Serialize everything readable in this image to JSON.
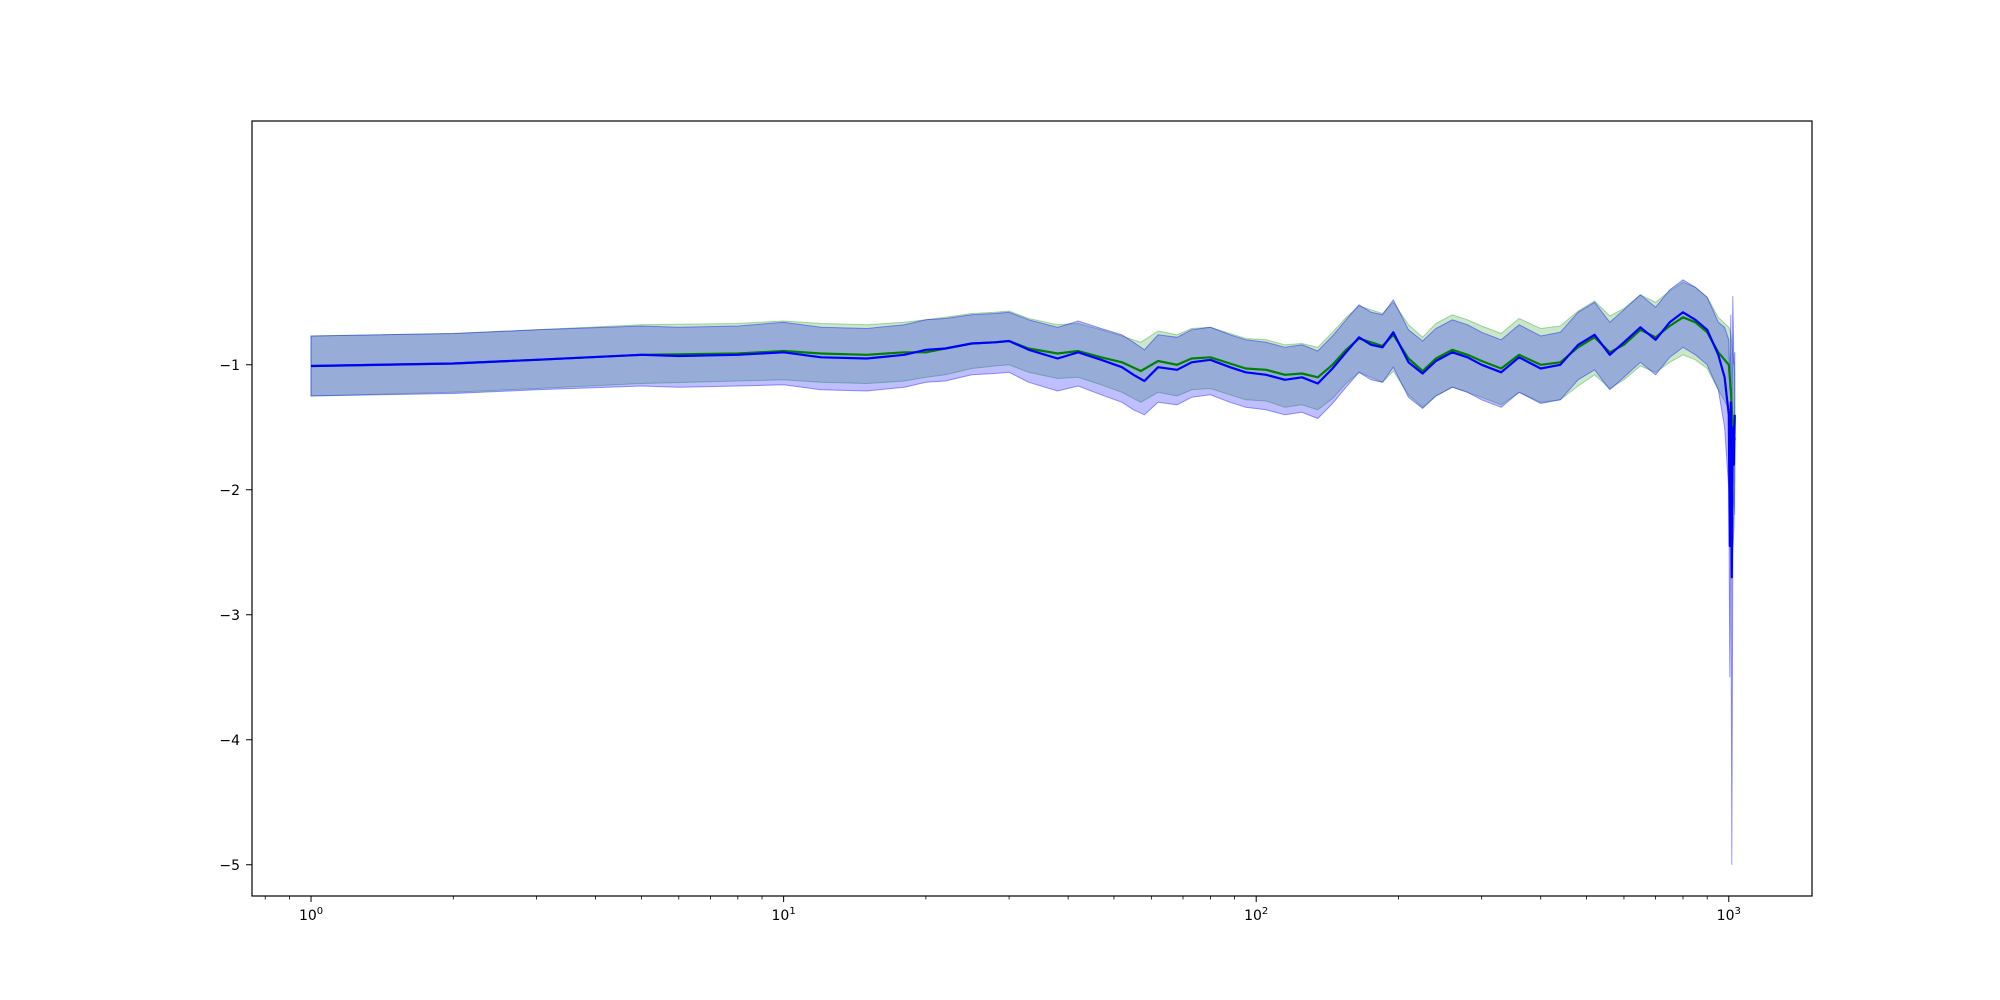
{
  "chart_data": {
    "type": "line",
    "title": "",
    "xlabel": "",
    "ylabel": "",
    "xscale": "log",
    "xlim": [
      0.75,
      1500
    ],
    "ylim": [
      -5.25,
      0.95
    ],
    "grid": false,
    "legend": "none",
    "x_major_ticks": [
      {
        "value": 1,
        "base": "10",
        "exp": "0"
      },
      {
        "value": 10,
        "base": "10",
        "exp": "1"
      },
      {
        "value": 100,
        "base": "10",
        "exp": "2"
      },
      {
        "value": 1000,
        "base": "10",
        "exp": "3"
      }
    ],
    "x_minor_ticks": [
      0.8,
      0.9,
      2,
      3,
      4,
      5,
      6,
      7,
      8,
      9,
      20,
      30,
      40,
      50,
      60,
      70,
      80,
      90,
      200,
      300,
      400,
      500,
      600,
      700,
      800,
      900
    ],
    "y_ticks": [
      {
        "value": -5,
        "label": "−5"
      },
      {
        "value": -4,
        "label": "−4"
      },
      {
        "value": -3,
        "label": "−3"
      },
      {
        "value": -2,
        "label": "−2"
      },
      {
        "value": -1,
        "label": "−1"
      }
    ],
    "series": [
      {
        "color": "#008000",
        "band_color": "#2ca02c",
        "x": [
          1,
          2,
          3,
          5,
          8,
          10,
          12,
          15,
          18,
          20,
          22,
          25,
          28,
          30,
          33,
          38,
          42,
          47,
          52,
          57,
          62,
          68,
          73,
          80,
          88,
          95,
          105,
          115,
          125,
          135,
          145,
          155,
          165,
          175,
          185,
          195,
          210,
          225,
          240,
          260,
          280,
          300,
          330,
          360,
          400,
          440,
          480,
          520,
          560,
          600,
          650,
          700,
          750,
          800,
          850,
          900,
          950,
          1000,
          1010,
          1020,
          1030
        ],
        "y": [
          -1.01,
          -0.99,
          -0.96,
          -0.92,
          -0.91,
          -0.89,
          -0.91,
          -0.92,
          -0.9,
          -0.9,
          -0.87,
          -0.83,
          -0.82,
          -0.81,
          -0.87,
          -0.91,
          -0.89,
          -0.94,
          -0.98,
          -1.05,
          -0.97,
          -1.0,
          -0.95,
          -0.94,
          -0.99,
          -1.03,
          -1.04,
          -1.08,
          -1.07,
          -1.1,
          -1.0,
          -0.88,
          -0.79,
          -0.82,
          -0.85,
          -0.76,
          -0.95,
          -1.05,
          -0.95,
          -0.88,
          -0.92,
          -0.97,
          -1.03,
          -0.92,
          -1.0,
          -0.98,
          -0.86,
          -0.78,
          -0.9,
          -0.84,
          -0.72,
          -0.78,
          -0.69,
          -0.62,
          -0.66,
          -0.74,
          -0.9,
          -1.0,
          -1.2,
          -1.5,
          -1.6
        ],
        "lower": [
          -1.25,
          -1.22,
          -1.19,
          -1.15,
          -1.13,
          -1.12,
          -1.14,
          -1.15,
          -1.13,
          -1.1,
          -1.08,
          -1.03,
          -1.01,
          -1.0,
          -1.06,
          -1.11,
          -1.1,
          -1.16,
          -1.22,
          -1.3,
          -1.22,
          -1.25,
          -1.2,
          -1.19,
          -1.24,
          -1.28,
          -1.29,
          -1.34,
          -1.32,
          -1.36,
          -1.27,
          -1.15,
          -1.06,
          -1.1,
          -1.14,
          -1.05,
          -1.24,
          -1.34,
          -1.25,
          -1.18,
          -1.22,
          -1.26,
          -1.32,
          -1.22,
          -1.3,
          -1.28,
          -1.17,
          -1.08,
          -1.19,
          -1.12,
          -1.01,
          -1.06,
          -0.98,
          -0.92,
          -0.96,
          -1.03,
          -1.2,
          -1.35,
          -1.75,
          -2.0,
          -2.2
        ],
        "upper": [
          -0.77,
          -0.75,
          -0.72,
          -0.68,
          -0.67,
          -0.65,
          -0.67,
          -0.68,
          -0.66,
          -0.64,
          -0.62,
          -0.59,
          -0.58,
          -0.57,
          -0.63,
          -0.68,
          -0.67,
          -0.72,
          -0.77,
          -0.82,
          -0.73,
          -0.76,
          -0.71,
          -0.7,
          -0.75,
          -0.79,
          -0.8,
          -0.84,
          -0.83,
          -0.86,
          -0.74,
          -0.62,
          -0.53,
          -0.56,
          -0.59,
          -0.5,
          -0.68,
          -0.78,
          -0.67,
          -0.6,
          -0.64,
          -0.69,
          -0.75,
          -0.63,
          -0.71,
          -0.69,
          -0.57,
          -0.49,
          -0.61,
          -0.55,
          -0.44,
          -0.5,
          -0.41,
          -0.34,
          -0.38,
          -0.46,
          -0.62,
          -0.7,
          -0.75,
          -0.9,
          -1.05
        ]
      },
      {
        "color": "#0000ff",
        "band_color": "#0000ff",
        "x": [
          1,
          2,
          3,
          5,
          6,
          8,
          10,
          12,
          15,
          18,
          20,
          22,
          25,
          28,
          30,
          33,
          38,
          42,
          47,
          52,
          55,
          58,
          62,
          68,
          73,
          80,
          88,
          95,
          105,
          115,
          125,
          135,
          145,
          155,
          165,
          175,
          185,
          195,
          210,
          225,
          240,
          260,
          280,
          300,
          330,
          360,
          400,
          440,
          480,
          520,
          560,
          600,
          650,
          700,
          750,
          800,
          850,
          900,
          950,
          980,
          1000,
          1005,
          1010,
          1015,
          1020,
          1025,
          1030
        ],
        "y": [
          -1.01,
          -0.99,
          -0.96,
          -0.92,
          -0.93,
          -0.92,
          -0.9,
          -0.94,
          -0.95,
          -0.92,
          -0.88,
          -0.87,
          -0.83,
          -0.82,
          -0.81,
          -0.88,
          -0.95,
          -0.9,
          -0.96,
          -1.02,
          -1.08,
          -1.13,
          -1.02,
          -1.04,
          -0.98,
          -0.96,
          -1.02,
          -1.06,
          -1.08,
          -1.12,
          -1.1,
          -1.15,
          -1.03,
          -0.9,
          -0.78,
          -0.84,
          -0.86,
          -0.74,
          -0.98,
          -1.07,
          -0.97,
          -0.9,
          -0.94,
          -1.0,
          -1.06,
          -0.94,
          -1.03,
          -1.0,
          -0.84,
          -0.76,
          -0.92,
          -0.82,
          -0.7,
          -0.8,
          -0.66,
          -0.58,
          -0.64,
          -0.72,
          -0.92,
          -1.1,
          -1.4,
          -2.45,
          -1.3,
          -2.7,
          -1.5,
          -1.8,
          -1.4
        ],
        "lower": [
          -1.25,
          -1.23,
          -1.2,
          -1.17,
          -1.18,
          -1.17,
          -1.16,
          -1.2,
          -1.21,
          -1.18,
          -1.14,
          -1.13,
          -1.08,
          -1.07,
          -1.06,
          -1.14,
          -1.21,
          -1.17,
          -1.24,
          -1.3,
          -1.36,
          -1.4,
          -1.3,
          -1.32,
          -1.26,
          -1.24,
          -1.3,
          -1.34,
          -1.36,
          -1.4,
          -1.38,
          -1.43,
          -1.31,
          -1.18,
          -1.06,
          -1.12,
          -1.14,
          -1.02,
          -1.26,
          -1.35,
          -1.25,
          -1.18,
          -1.22,
          -1.28,
          -1.34,
          -1.22,
          -1.31,
          -1.28,
          -1.12,
          -1.04,
          -1.2,
          -1.1,
          -0.98,
          -1.08,
          -0.94,
          -0.86,
          -0.92,
          -1.0,
          -1.2,
          -1.5,
          -2.0,
          -3.5,
          -2.2,
          -5.0,
          -2.5,
          -2.3,
          -1.9
        ],
        "upper": [
          -0.77,
          -0.75,
          -0.72,
          -0.69,
          -0.7,
          -0.69,
          -0.66,
          -0.7,
          -0.71,
          -0.68,
          -0.64,
          -0.63,
          -0.6,
          -0.59,
          -0.58,
          -0.64,
          -0.7,
          -0.65,
          -0.71,
          -0.76,
          -0.82,
          -0.88,
          -0.76,
          -0.78,
          -0.72,
          -0.7,
          -0.76,
          -0.8,
          -0.82,
          -0.86,
          -0.84,
          -0.89,
          -0.77,
          -0.64,
          -0.52,
          -0.58,
          -0.6,
          -0.48,
          -0.72,
          -0.81,
          -0.71,
          -0.64,
          -0.68,
          -0.74,
          -0.8,
          -0.68,
          -0.77,
          -0.74,
          -0.58,
          -0.5,
          -0.66,
          -0.56,
          -0.44,
          -0.54,
          -0.4,
          -0.32,
          -0.38,
          -0.46,
          -0.66,
          -0.7,
          -0.8,
          -1.2,
          -0.6,
          -1.6,
          -0.45,
          -1.0,
          -0.9
        ]
      }
    ]
  }
}
